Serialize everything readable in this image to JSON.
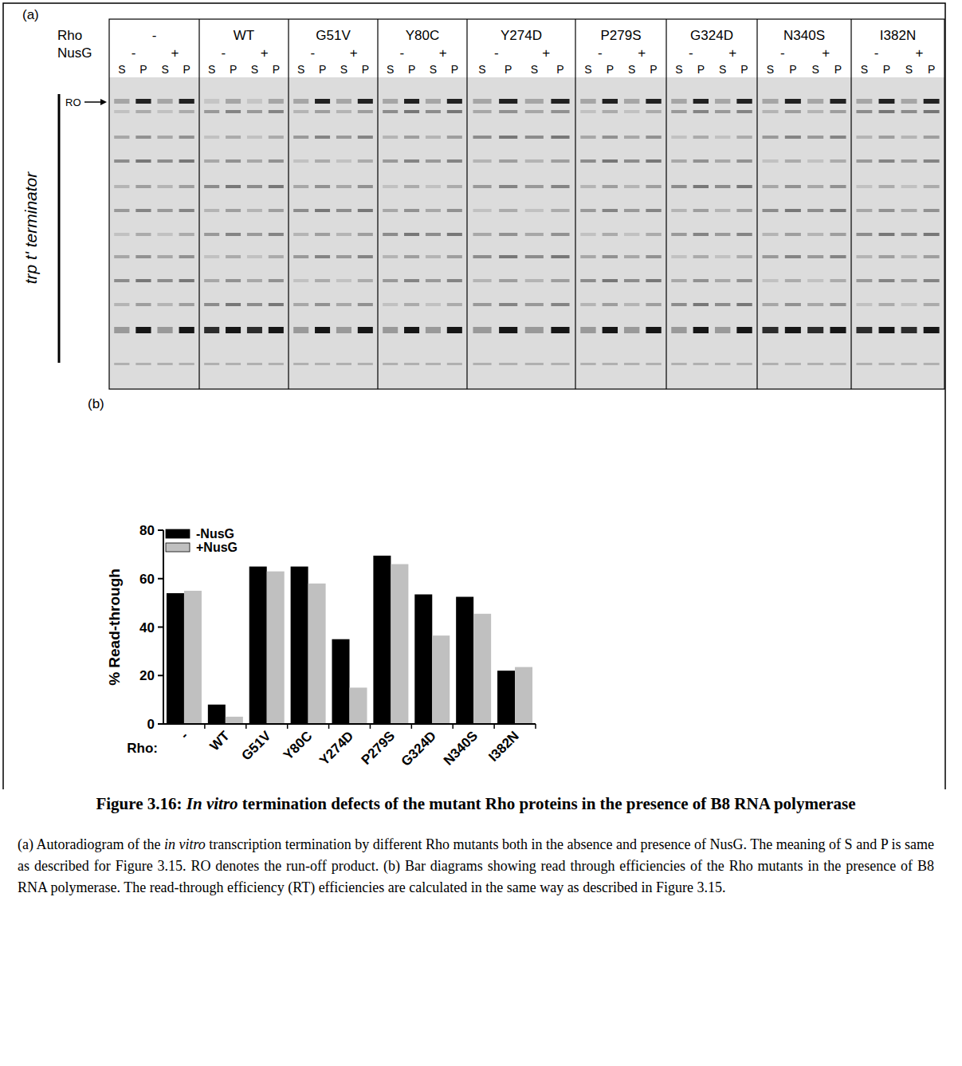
{
  "panel_a": {
    "label": "(a)",
    "row_labels": [
      "Rho",
      "NusG"
    ],
    "side_label": "trp t' terminator",
    "marker": "RO",
    "groups": [
      {
        "rho": "-",
        "nusg": [
          "-",
          "+"
        ],
        "lanes": [
          "S",
          "P",
          "S",
          "P"
        ]
      },
      {
        "rho": "WT",
        "nusg": [
          "-",
          "+"
        ],
        "lanes": [
          "S",
          "P",
          "S",
          "P"
        ]
      },
      {
        "rho": "G51V",
        "nusg": [
          "-",
          "+"
        ],
        "lanes": [
          "S",
          "P",
          "S",
          "P"
        ]
      },
      {
        "rho": "Y80C",
        "nusg": [
          "-",
          "+"
        ],
        "lanes": [
          "S",
          "P",
          "S",
          "P"
        ]
      },
      {
        "rho": "Y274D",
        "nusg": [
          "-",
          "+"
        ],
        "lanes": [
          "S",
          "P",
          "S",
          "P"
        ]
      },
      {
        "rho": "P279S",
        "nusg": [
          "-",
          "+"
        ],
        "lanes": [
          "S",
          "P",
          "S",
          "P"
        ]
      },
      {
        "rho": "G324D",
        "nusg": [
          "-",
          "+"
        ],
        "lanes": [
          "S",
          "P",
          "S",
          "P"
        ]
      },
      {
        "rho": "N340S",
        "nusg": [
          "-",
          "+"
        ],
        "lanes": [
          "S",
          "P",
          "S",
          "P"
        ]
      },
      {
        "rho": "I382N",
        "nusg": [
          "-",
          "+"
        ],
        "lanes": [
          "S",
          "P",
          "S",
          "P"
        ]
      }
    ]
  },
  "chart_data": {
    "type": "bar",
    "panel_label": "(b)",
    "y_label": "% Read-through",
    "x_label": "Rho:",
    "categories": [
      "-",
      "WT",
      "G51V",
      "Y80C",
      "Y274D",
      "P279S",
      "G324D",
      "N340S",
      "I382N"
    ],
    "series": [
      {
        "name": "-NusG",
        "color": "#000000",
        "values": [
          54,
          8,
          65,
          65,
          35,
          69.5,
          53.5,
          52.5,
          22
        ]
      },
      {
        "name": "+NusG",
        "color": "#c0c0c0",
        "values": [
          55,
          3,
          63,
          58,
          15,
          66,
          36.5,
          45.5,
          23.5
        ]
      }
    ],
    "ylim": [
      0,
      80
    ],
    "yticks": [
      0,
      20,
      40,
      60,
      80
    ],
    "grid": false,
    "legend": "top-left"
  },
  "caption": {
    "title": [
      {
        "text": "Figure 3.16: ",
        "italic": false
      },
      {
        "text": "In vitro",
        "italic": true
      },
      {
        "text": " termination defects of the mutant Rho proteins in the presence of B8 RNA polymerase",
        "italic": false
      }
    ],
    "body": [
      {
        "text": "(a) Autoradiogram of the ",
        "italic": false
      },
      {
        "text": "in vitro",
        "italic": true
      },
      {
        "text": " transcription termination by different Rho mutants both in the absence and presence of NusG. The meaning of S and P is same as described for Figure 3.15. RO denotes the run-off product. (b) Bar diagrams showing read through efficiencies of the Rho mutants in the presence of B8 RNA polymerase. The read-through efficiency (RT) efficiencies are calculated in the same way as described in Figure 3.15.",
        "italic": false
      }
    ]
  }
}
